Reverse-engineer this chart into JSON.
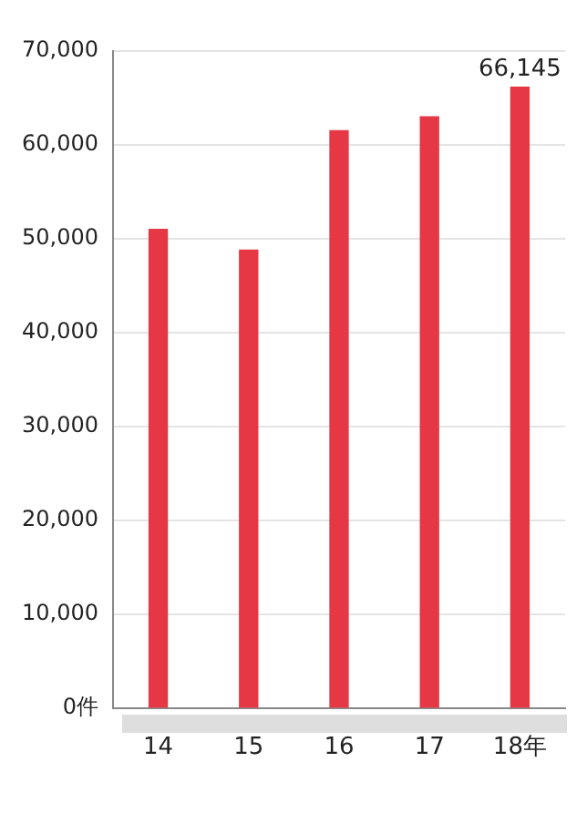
{
  "chart_data": {
    "type": "bar",
    "categories": [
      "14",
      "15",
      "16",
      "17",
      "18年"
    ],
    "values": [
      51000,
      48800,
      61500,
      63000,
      66145
    ],
    "value_labels": [
      null,
      null,
      null,
      null,
      "66,145"
    ],
    "color": "#e63744",
    "ylim": [
      0,
      70000
    ],
    "yticks": [
      {
        "value": 0,
        "label": "0件"
      },
      {
        "value": 10000,
        "label": "10,000"
      },
      {
        "value": 20000,
        "label": "20,000"
      },
      {
        "value": 30000,
        "label": "30,000"
      },
      {
        "value": 40000,
        "label": "40,000"
      },
      {
        "value": 50000,
        "label": "50,000"
      },
      {
        "value": 60000,
        "label": "60,000"
      },
      {
        "value": 70000,
        "label": "70,000"
      }
    ],
    "grid": "y",
    "legend": false
  }
}
